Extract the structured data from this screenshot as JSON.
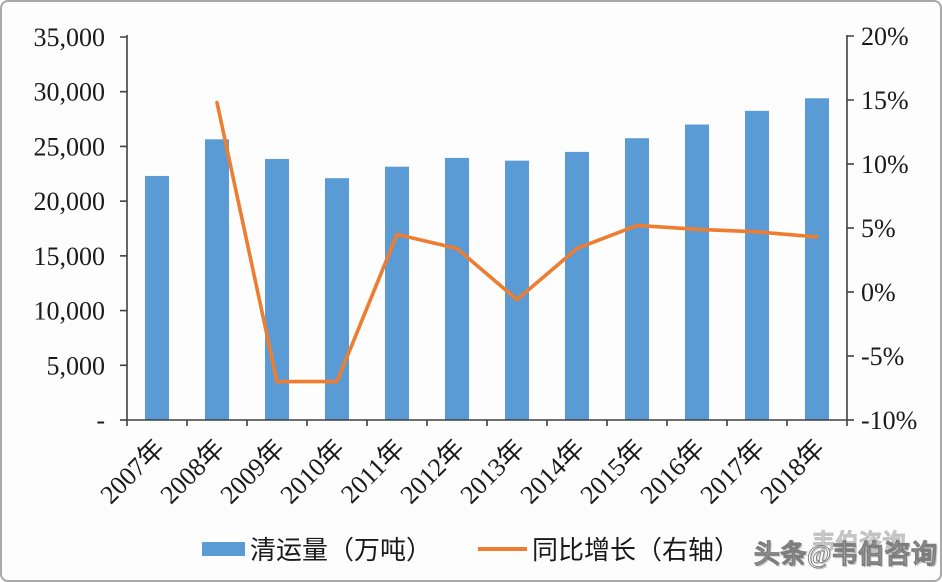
{
  "chart_data": {
    "type": "bar+line combo",
    "categories": [
      "2007年",
      "2008年",
      "2009年",
      "2010年",
      "2011年",
      "2012年",
      "2013年",
      "2014年",
      "2015年",
      "2016年",
      "2017年",
      "2018年"
    ],
    "series": [
      {
        "name": "清运量（万吨）",
        "type": "bar",
        "axis": "left",
        "color": "#5B9BD5",
        "values": [
          22300,
          25650,
          23850,
          22100,
          23150,
          23950,
          23700,
          24500,
          25750,
          27000,
          28250,
          29400
        ]
      },
      {
        "name": "同比增长（右轴）",
        "type": "line",
        "axis": "right",
        "color": "#ED7D31",
        "values": [
          null,
          14.8,
          -7.0,
          -7.0,
          4.5,
          3.4,
          -0.6,
          3.4,
          5.2,
          4.9,
          4.7,
          4.3
        ]
      }
    ],
    "left_axis": {
      "min": 0,
      "max": 35000,
      "step": 5000,
      "labels": [
        "-",
        "5,000",
        "10,000",
        "15,000",
        "20,000",
        "25,000",
        "30,000",
        "35,000"
      ]
    },
    "right_axis": {
      "min": -10,
      "max": 20,
      "step": 5,
      "labels": [
        "-10%",
        "-5%",
        "0%",
        "5%",
        "10%",
        "15%",
        "20%"
      ]
    },
    "grid": false,
    "legend_position": "bottom"
  },
  "watermark": {
    "text": "头条@韦伯咨询",
    "ghost": "韦伯咨询"
  }
}
